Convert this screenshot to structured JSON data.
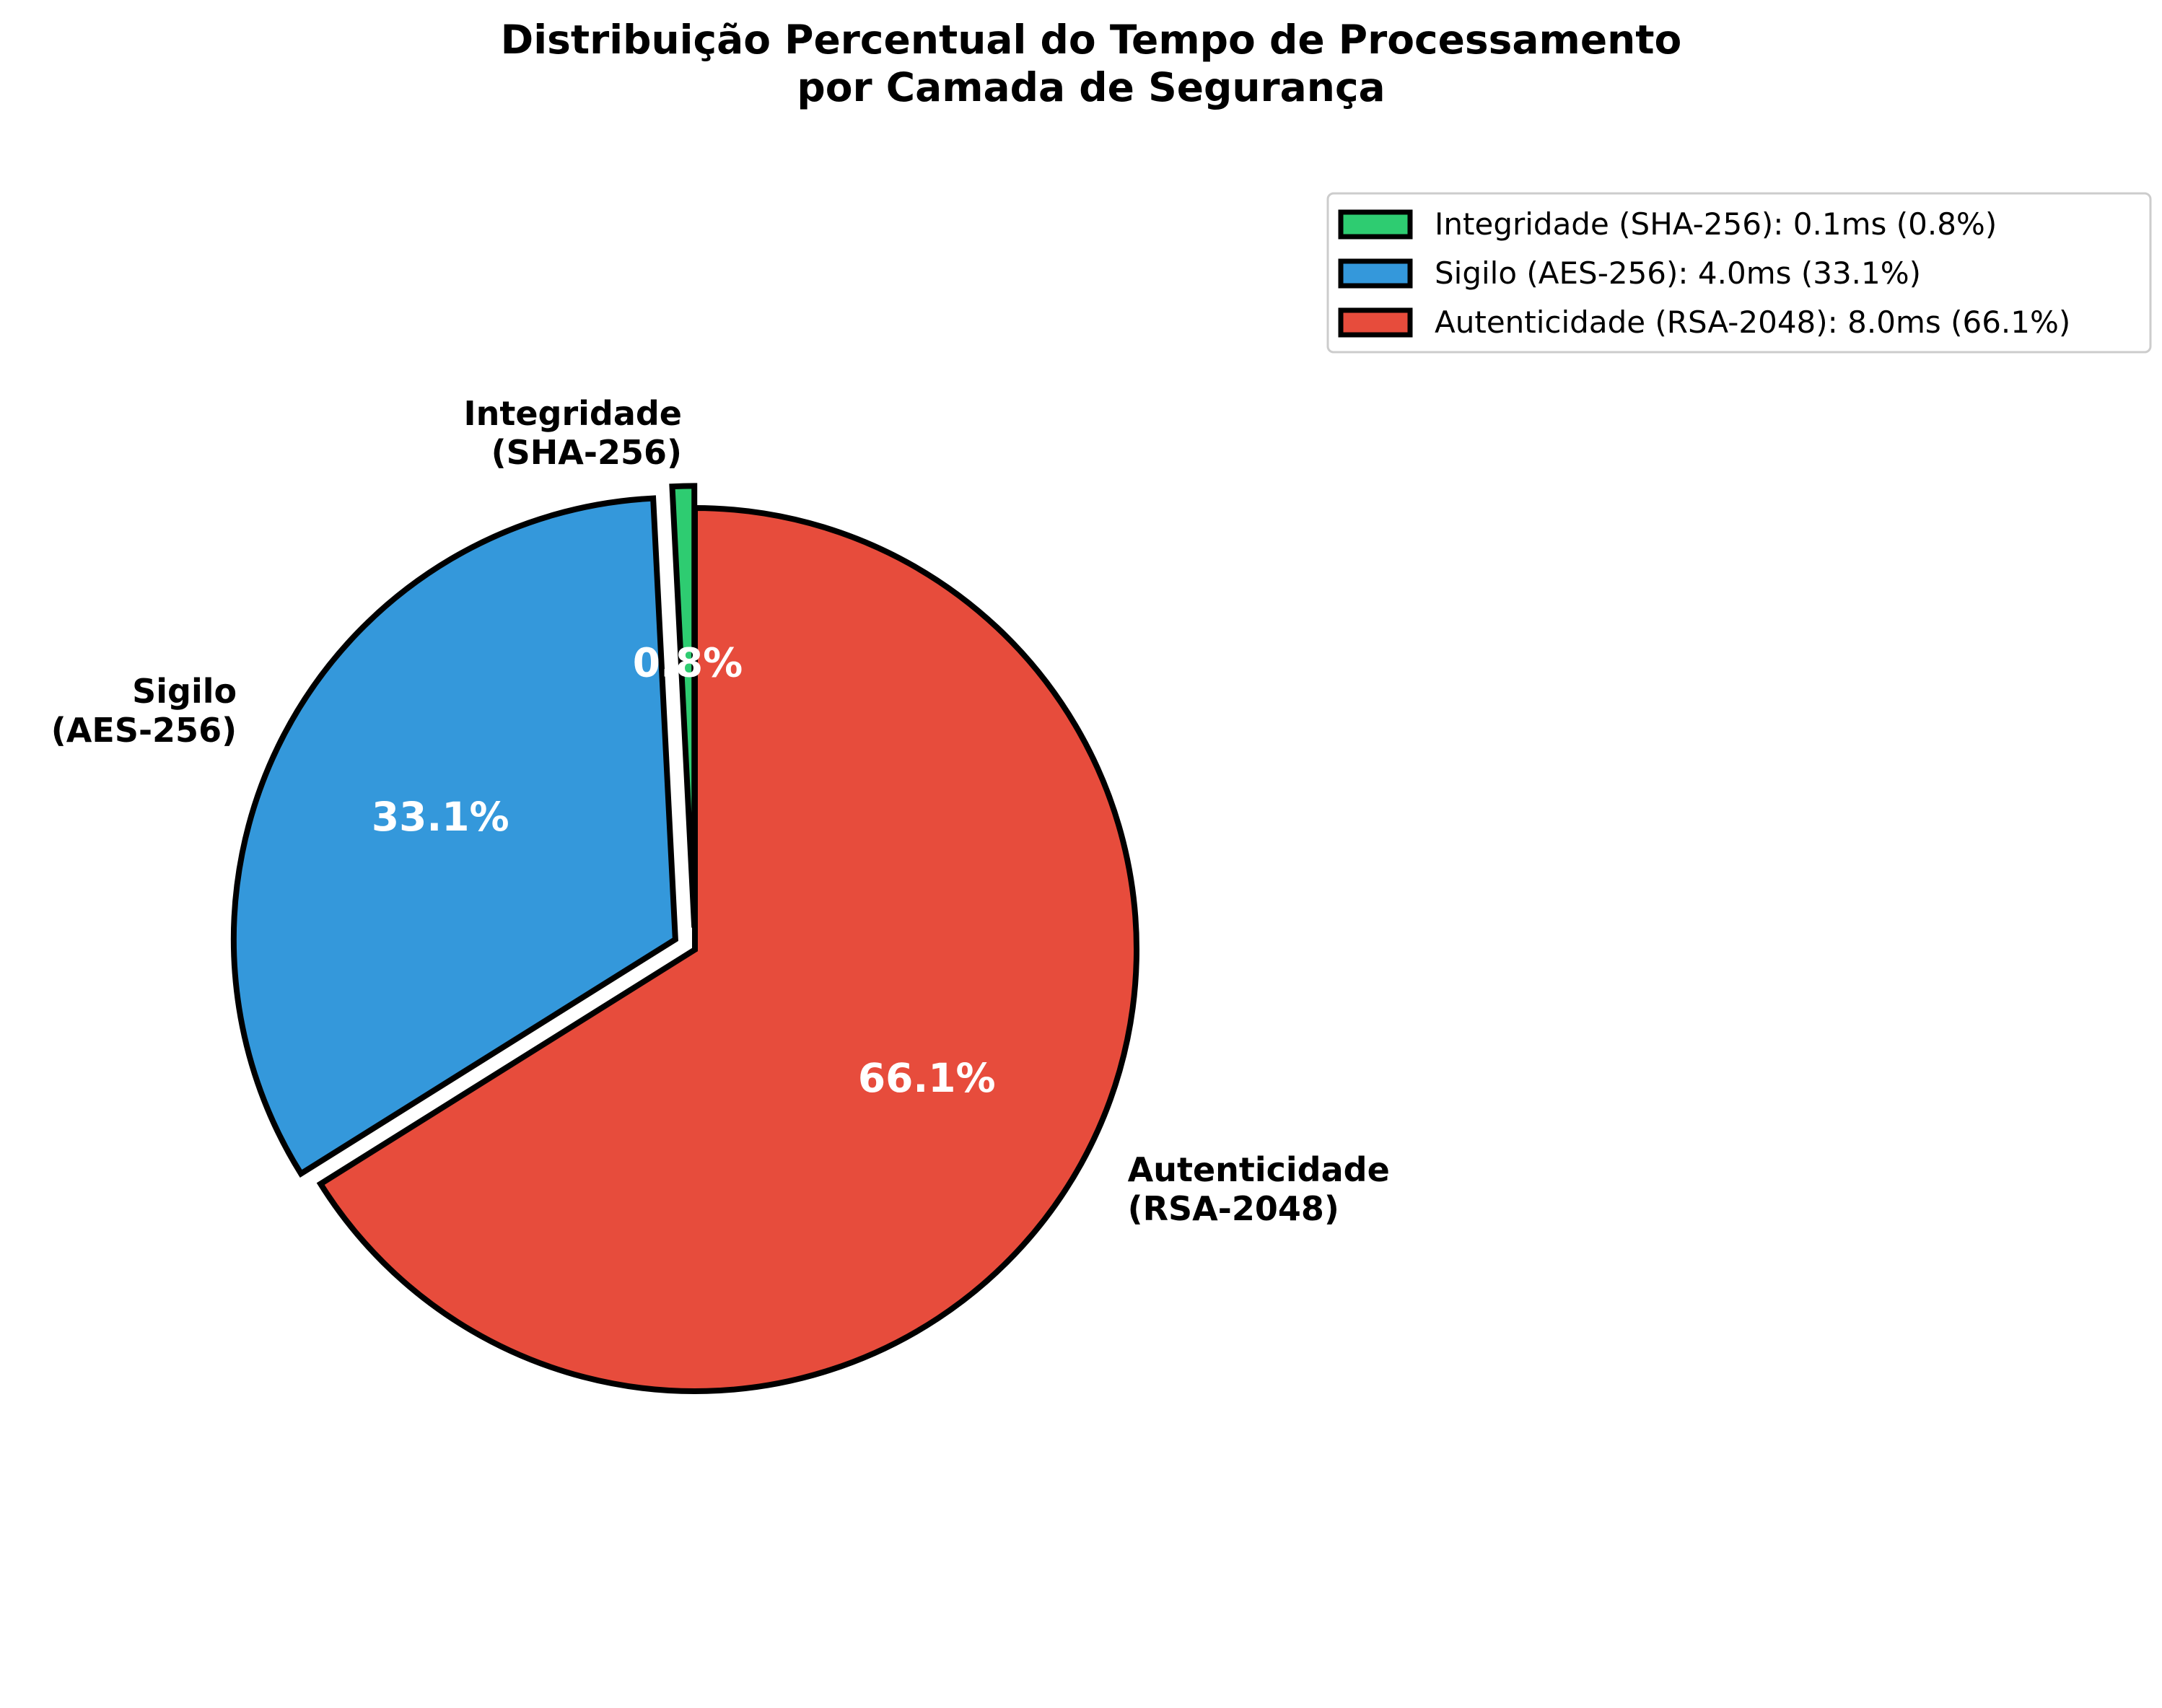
{
  "chart_data": {
    "type": "pie",
    "title_lines": [
      "Distribuição Percentual do Tempo de Processamento",
      "por Camada de Segurança"
    ],
    "slices": [
      {
        "label_lines": [
          "Integridade",
          "(SHA-256)"
        ],
        "value_ms": 0.1,
        "percent": 0.8,
        "percent_label": "0.8%",
        "color": "#2ecc71",
        "legend": "Integridade (SHA-256): 0.1ms (0.8%)"
      },
      {
        "label_lines": [
          "Sigilo",
          "(AES-256)"
        ],
        "value_ms": 4.0,
        "percent": 33.1,
        "percent_label": "33.1%",
        "color": "#3498db",
        "legend": "Sigilo (AES-256): 4.0ms (33.1%)"
      },
      {
        "label_lines": [
          "Autenticidade",
          "(RSA-2048)"
        ],
        "value_ms": 8.0,
        "percent": 66.1,
        "percent_label": "66.1%",
        "color": "#e74c3c",
        "legend": "Autenticidade (RSA-2048): 8.0ms (66.1%)"
      }
    ],
    "edge_color": "#000000",
    "start_angle_deg": 90,
    "direction": "counterclockwise",
    "exploded": true,
    "legend_position": "upper-right"
  }
}
